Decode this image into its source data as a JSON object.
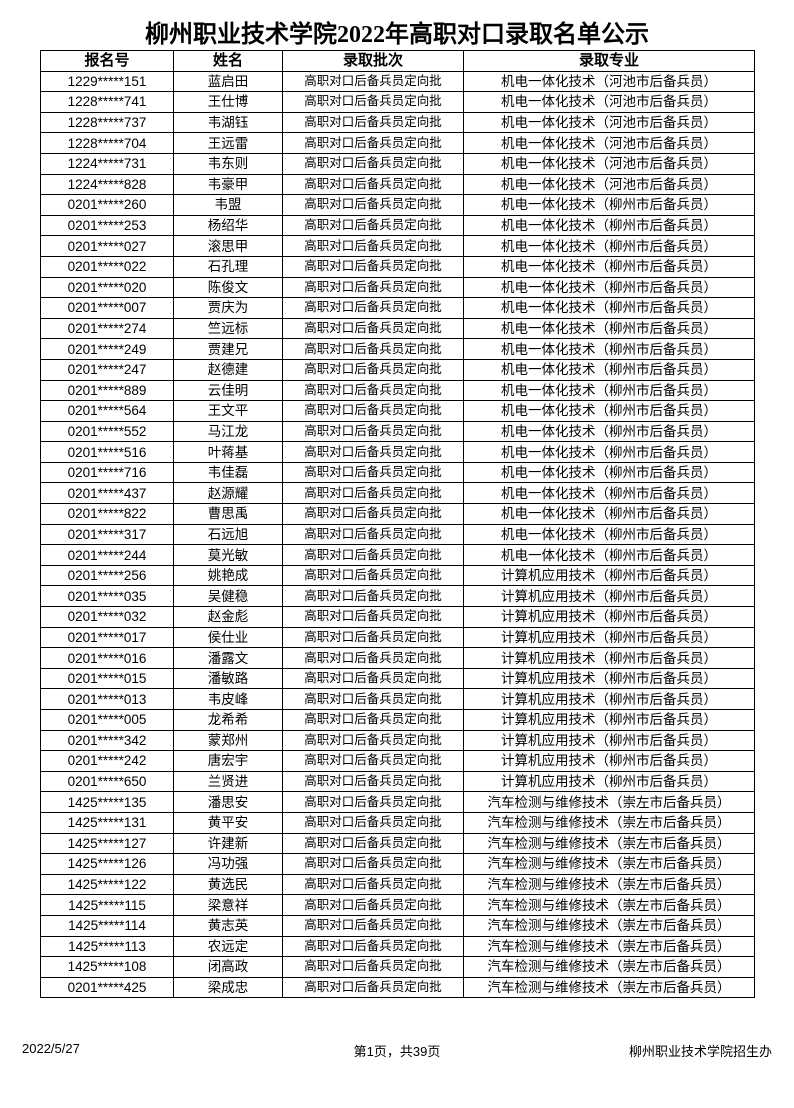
{
  "title": "柳州职业技术学院2022年高职对口录取名单公示",
  "columns": [
    "报名号",
    "姓名",
    "录取批次",
    "录取专业"
  ],
  "rows": [
    [
      "1229*****151",
      "蓝启田",
      "高职对口后备兵员定向批",
      "机电一体化技术（河池市后备兵员）"
    ],
    [
      "1228*****741",
      "王仕博",
      "高职对口后备兵员定向批",
      "机电一体化技术（河池市后备兵员）"
    ],
    [
      "1228*****737",
      "韦湖钰",
      "高职对口后备兵员定向批",
      "机电一体化技术（河池市后备兵员）"
    ],
    [
      "1228*****704",
      "王远雷",
      "高职对口后备兵员定向批",
      "机电一体化技术（河池市后备兵员）"
    ],
    [
      "1224*****731",
      "韦东则",
      "高职对口后备兵员定向批",
      "机电一体化技术（河池市后备兵员）"
    ],
    [
      "1224*****828",
      "韦豪甲",
      "高职对口后备兵员定向批",
      "机电一体化技术（河池市后备兵员）"
    ],
    [
      "0201*****260",
      "韦盟",
      "高职对口后备兵员定向批",
      "机电一体化技术（柳州市后备兵员）"
    ],
    [
      "0201*****253",
      "杨绍华",
      "高职对口后备兵员定向批",
      "机电一体化技术（柳州市后备兵员）"
    ],
    [
      "0201*****027",
      "滚思甲",
      "高职对口后备兵员定向批",
      "机电一体化技术（柳州市后备兵员）"
    ],
    [
      "0201*****022",
      "石孔理",
      "高职对口后备兵员定向批",
      "机电一体化技术（柳州市后备兵员）"
    ],
    [
      "0201*****020",
      "陈俊文",
      "高职对口后备兵员定向批",
      "机电一体化技术（柳州市后备兵员）"
    ],
    [
      "0201*****007",
      "贾庆为",
      "高职对口后备兵员定向批",
      "机电一体化技术（柳州市后备兵员）"
    ],
    [
      "0201*****274",
      "竺远标",
      "高职对口后备兵员定向批",
      "机电一体化技术（柳州市后备兵员）"
    ],
    [
      "0201*****249",
      "贾建兄",
      "高职对口后备兵员定向批",
      "机电一体化技术（柳州市后备兵员）"
    ],
    [
      "0201*****247",
      "赵德建",
      "高职对口后备兵员定向批",
      "机电一体化技术（柳州市后备兵员）"
    ],
    [
      "0201*****889",
      "云佳明",
      "高职对口后备兵员定向批",
      "机电一体化技术（柳州市后备兵员）"
    ],
    [
      "0201*****564",
      "王文平",
      "高职对口后备兵员定向批",
      "机电一体化技术（柳州市后备兵员）"
    ],
    [
      "0201*****552",
      "马江龙",
      "高职对口后备兵员定向批",
      "机电一体化技术（柳州市后备兵员）"
    ],
    [
      "0201*****516",
      "叶蒋基",
      "高职对口后备兵员定向批",
      "机电一体化技术（柳州市后备兵员）"
    ],
    [
      "0201*****716",
      "韦佳磊",
      "高职对口后备兵员定向批",
      "机电一体化技术（柳州市后备兵员）"
    ],
    [
      "0201*****437",
      "赵源耀",
      "高职对口后备兵员定向批",
      "机电一体化技术（柳州市后备兵员）"
    ],
    [
      "0201*****822",
      "曹思禹",
      "高职对口后备兵员定向批",
      "机电一体化技术（柳州市后备兵员）"
    ],
    [
      "0201*****317",
      "石远旭",
      "高职对口后备兵员定向批",
      "机电一体化技术（柳州市后备兵员）"
    ],
    [
      "0201*****244",
      "莫光敏",
      "高职对口后备兵员定向批",
      "机电一体化技术（柳州市后备兵员）"
    ],
    [
      "0201*****256",
      "姚艳成",
      "高职对口后备兵员定向批",
      "计算机应用技术（柳州市后备兵员）"
    ],
    [
      "0201*****035",
      "吴健稳",
      "高职对口后备兵员定向批",
      "计算机应用技术（柳州市后备兵员）"
    ],
    [
      "0201*****032",
      "赵金彪",
      "高职对口后备兵员定向批",
      "计算机应用技术（柳州市后备兵员）"
    ],
    [
      "0201*****017",
      "侯仕业",
      "高职对口后备兵员定向批",
      "计算机应用技术（柳州市后备兵员）"
    ],
    [
      "0201*****016",
      "潘露文",
      "高职对口后备兵员定向批",
      "计算机应用技术（柳州市后备兵员）"
    ],
    [
      "0201*****015",
      "潘敏路",
      "高职对口后备兵员定向批",
      "计算机应用技术（柳州市后备兵员）"
    ],
    [
      "0201*****013",
      "韦皮峰",
      "高职对口后备兵员定向批",
      "计算机应用技术（柳州市后备兵员）"
    ],
    [
      "0201*****005",
      "龙希希",
      "高职对口后备兵员定向批",
      "计算机应用技术（柳州市后备兵员）"
    ],
    [
      "0201*****342",
      "蒙郑州",
      "高职对口后备兵员定向批",
      "计算机应用技术（柳州市后备兵员）"
    ],
    [
      "0201*****242",
      "唐宏宇",
      "高职对口后备兵员定向批",
      "计算机应用技术（柳州市后备兵员）"
    ],
    [
      "0201*****650",
      "兰贤进",
      "高职对口后备兵员定向批",
      "计算机应用技术（柳州市后备兵员）"
    ],
    [
      "1425*****135",
      "潘思安",
      "高职对口后备兵员定向批",
      "汽车检测与维修技术（崇左市后备兵员）"
    ],
    [
      "1425*****131",
      "黄平安",
      "高职对口后备兵员定向批",
      "汽车检测与维修技术（崇左市后备兵员）"
    ],
    [
      "1425*****127",
      "许建新",
      "高职对口后备兵员定向批",
      "汽车检测与维修技术（崇左市后备兵员）"
    ],
    [
      "1425*****126",
      "冯功强",
      "高职对口后备兵员定向批",
      "汽车检测与维修技术（崇左市后备兵员）"
    ],
    [
      "1425*****122",
      "黄选民",
      "高职对口后备兵员定向批",
      "汽车检测与维修技术（崇左市后备兵员）"
    ],
    [
      "1425*****115",
      "梁意祥",
      "高职对口后备兵员定向批",
      "汽车检测与维修技术（崇左市后备兵员）"
    ],
    [
      "1425*****114",
      "黄志英",
      "高职对口后备兵员定向批",
      "汽车检测与维修技术（崇左市后备兵员）"
    ],
    [
      "1425*****113",
      "农远定",
      "高职对口后备兵员定向批",
      "汽车检测与维修技术（崇左市后备兵员）"
    ],
    [
      "1425*****108",
      "闭高政",
      "高职对口后备兵员定向批",
      "汽车检测与维修技术（崇左市后备兵员）"
    ],
    [
      "0201*****425",
      "梁成忠",
      "高职对口后备兵员定向批",
      "汽车检测与维修技术（崇左市后备兵员）"
    ]
  ],
  "footer": {
    "date": "2022/5/27",
    "page": "第1页，共39页",
    "office": "柳州职业技术学院招生办"
  }
}
